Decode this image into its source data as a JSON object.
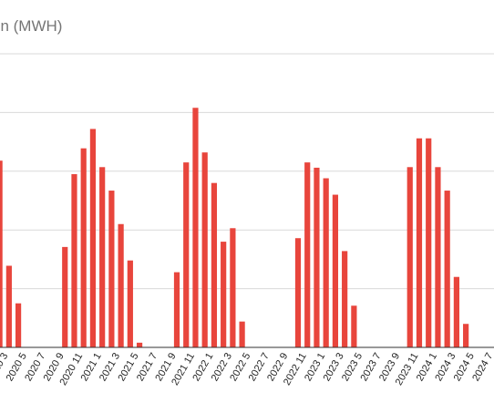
{
  "chart_data": {
    "type": "bar",
    "title": "on (MWH)",
    "xlabel": "",
    "ylabel": "",
    "bar_color": "#e8453c",
    "grid_color": "#d9d9d9",
    "axis_color": "#333333",
    "ylim": [
      0,
      6
    ],
    "yticks": [
      0,
      1,
      2,
      3,
      4,
      5
    ],
    "grid": true,
    "legend": "none",
    "categories": [
      "2020 2",
      "2020 3",
      "2020 4",
      "2020 5",
      "2020 6",
      "2020 7",
      "2020 8",
      "2020 9",
      "2020 10",
      "2020 11",
      "2020 12",
      "2021 1",
      "2021 2",
      "2021 3",
      "2021 4",
      "2021 5",
      "2021 6",
      "2021 7",
      "2021 8",
      "2021 9",
      "2021 10",
      "2021 11",
      "2021 12",
      "2022 1",
      "2022 2",
      "2022 3",
      "2022 4",
      "2022 5",
      "2022 6",
      "2022 7",
      "2022 8",
      "2022 9",
      "2022 10",
      "2022 11",
      "2022 12",
      "2023 1",
      "2023 2",
      "2023 3",
      "2023 4",
      "2023 5",
      "2023 6",
      "2023 7",
      "2023 8",
      "2023 9",
      "2023 10",
      "2023 11",
      "2023 12",
      "2024 1",
      "2024 2",
      "2024 3",
      "2024 4",
      "2024 5",
      "2024 6"
    ],
    "values": [
      3.55,
      3.18,
      1.39,
      0.75,
      0,
      0,
      0,
      0,
      1.71,
      2.95,
      3.39,
      3.72,
      3.07,
      2.67,
      2.1,
      1.48,
      0.08,
      0,
      0,
      0,
      1.28,
      3.15,
      4.08,
      3.32,
      2.8,
      1.8,
      2.03,
      0.44,
      0,
      0,
      0,
      0,
      0,
      1.86,
      3.15,
      3.06,
      2.88,
      2.6,
      1.64,
      0.71,
      0,
      0,
      0,
      0,
      0,
      3.07,
      3.56,
      3.56,
      3.07,
      2.67,
      1.2,
      0.4,
      0
    ],
    "x_tick_labels": [
      "2020 3",
      "2020 5",
      "2020 7",
      "2020 9",
      "2020 11",
      "2021 1",
      "2021 3",
      "2021 5",
      "2021 7",
      "2021 9",
      "2021 11",
      "2022 1",
      "2022 3",
      "2022 5",
      "2022 7",
      "2022 9",
      "2022 11",
      "2023 1",
      "2023 3",
      "2023 5",
      "2023 7",
      "2023 9",
      "2023 11",
      "2024 1",
      "2024 3",
      "2024 5",
      "2024 7"
    ]
  }
}
